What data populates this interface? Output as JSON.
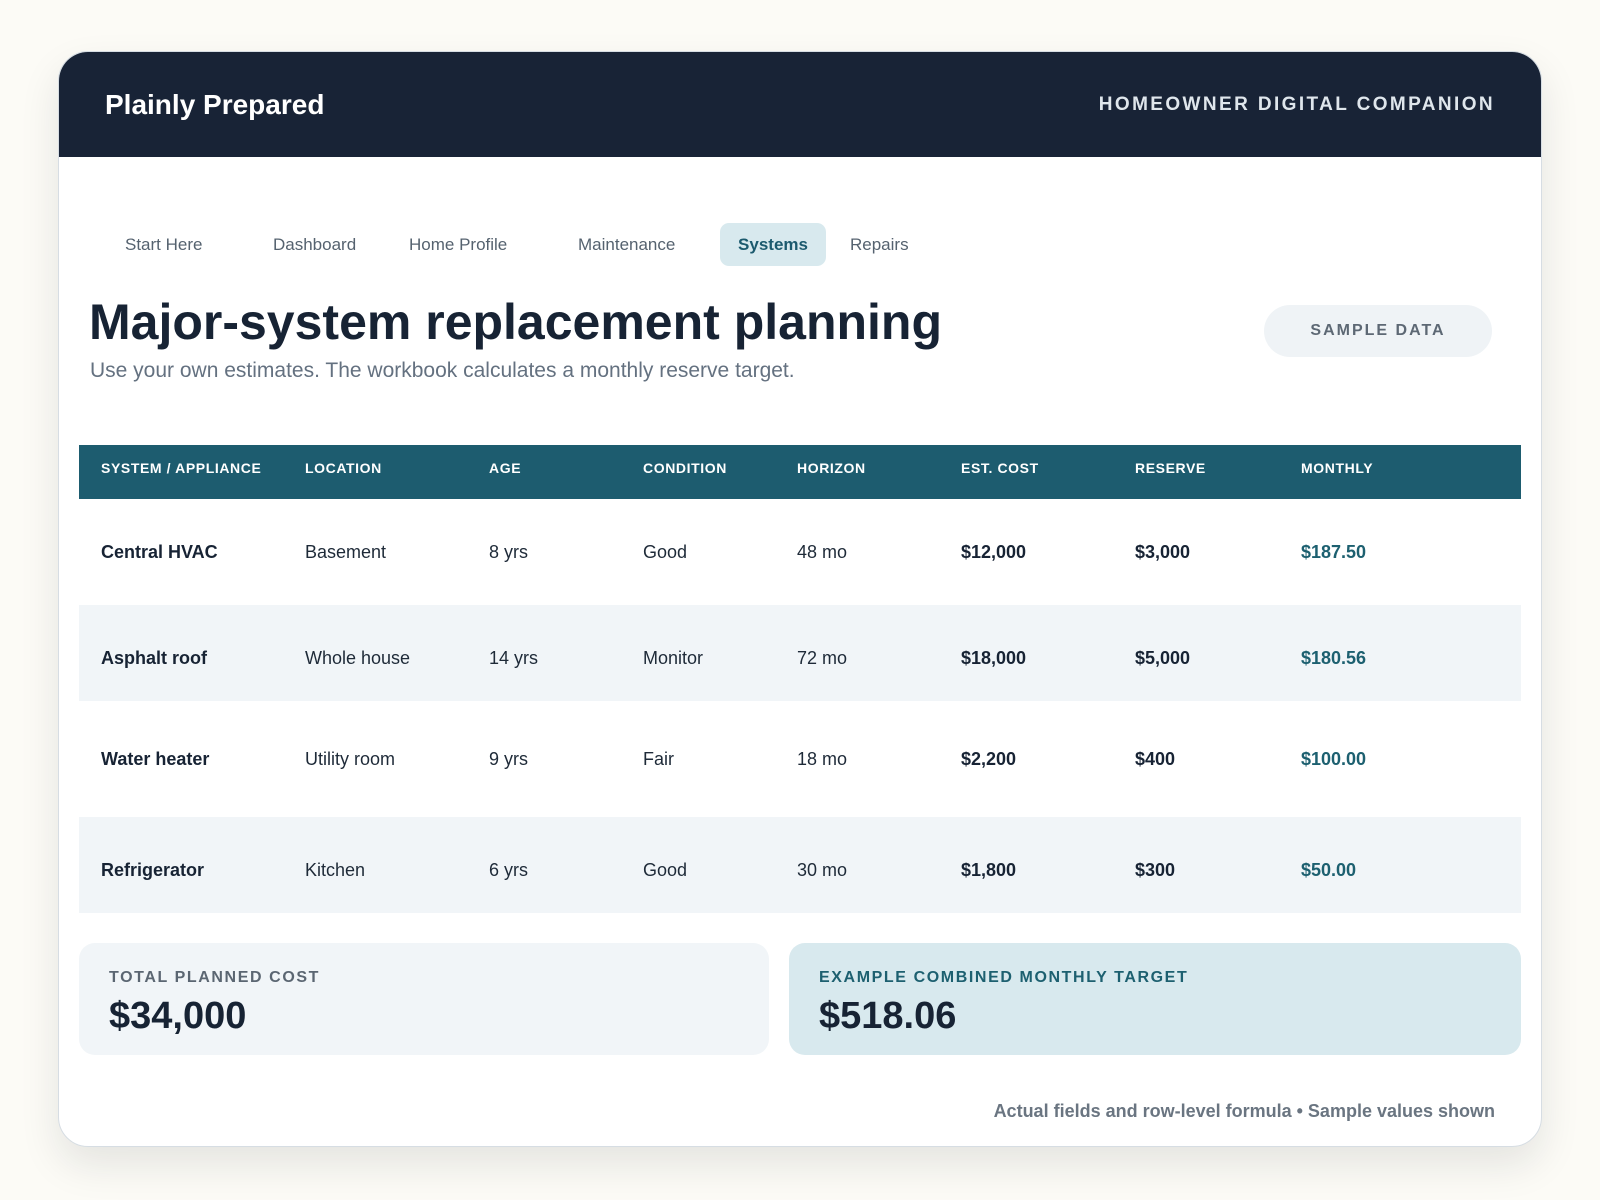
{
  "header": {
    "brand": "Plainly Prepared",
    "tagline": "HOMEOWNER DIGITAL COMPANION"
  },
  "nav": {
    "items": [
      {
        "label": "Start Here",
        "active": false
      },
      {
        "label": "Dashboard",
        "active": false
      },
      {
        "label": "Home Profile",
        "active": false
      },
      {
        "label": "Maintenance",
        "active": false
      },
      {
        "label": "Systems",
        "active": true
      },
      {
        "label": "Repairs",
        "active": false
      }
    ]
  },
  "page": {
    "title": "Major-system replacement planning",
    "subtitle": "Use your own estimates. The workbook calculates a monthly reserve target.",
    "badge": "SAMPLE DATA"
  },
  "table": {
    "columns": [
      "SYSTEM / APPLIANCE",
      "LOCATION",
      "AGE",
      "CONDITION",
      "HORIZON",
      "EST. COST",
      "RESERVE",
      "MONTHLY"
    ],
    "rows": [
      {
        "system": "Central HVAC",
        "location": "Basement",
        "age": "8 yrs",
        "condition": "Good",
        "horizon": "48 mo",
        "cost": "$12,000",
        "reserve": "$3,000",
        "monthly": "$187.50"
      },
      {
        "system": "Asphalt roof",
        "location": "Whole house",
        "age": "14 yrs",
        "condition": "Monitor",
        "horizon": "72 mo",
        "cost": "$18,000",
        "reserve": "$5,000",
        "monthly": "$180.56"
      },
      {
        "system": "Water heater",
        "location": "Utility room",
        "age": "9 yrs",
        "condition": "Fair",
        "horizon": "18 mo",
        "cost": "$2,200",
        "reserve": "$400",
        "monthly": "$100.00"
      },
      {
        "system": "Refrigerator",
        "location": "Kitchen",
        "age": "6 yrs",
        "condition": "Good",
        "horizon": "30 mo",
        "cost": "$1,800",
        "reserve": "$300",
        "monthly": "$50.00"
      }
    ]
  },
  "summary": {
    "total_label": "TOTAL PLANNED COST",
    "total_value": "$34,000",
    "target_label": "EXAMPLE COMBINED MONTHLY TARGET",
    "target_value": "$518.06"
  },
  "footnote": "Actual fields and row-level formula • Sample values shown",
  "colors": {
    "header_bg": "#182336",
    "table_header_bg": "#1d5c6f",
    "accent": "#1d6070",
    "active_tab_bg": "#d8e9ee"
  }
}
